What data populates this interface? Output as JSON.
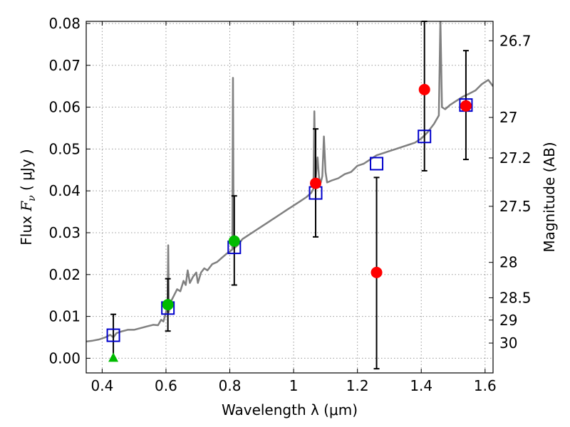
{
  "chart_data": {
    "type": "scatter",
    "xlabel": "Wavelength  λ (μm)",
    "ylabel_prefix": "Flux  ",
    "ylabel_symbol": "F",
    "ylabel_subscript": "ν",
    "ylabel_suffix": "  ( μJy )",
    "y2label": "Magnitude (AB)",
    "xlim": [
      0.35,
      1.625
    ],
    "ylim": [
      -0.0035,
      0.0805
    ],
    "grid": true,
    "x_ticks": [
      {
        "value": 0.4,
        "label": "0.4"
      },
      {
        "value": 0.6,
        "label": "0.6"
      },
      {
        "value": 0.8,
        "label": "0.8"
      },
      {
        "value": 1.0,
        "label": "1"
      },
      {
        "value": 1.2,
        "label": "1.2"
      },
      {
        "value": 1.4,
        "label": "1.4"
      },
      {
        "value": 1.6,
        "label": "1.6"
      }
    ],
    "y_ticks": [
      {
        "value": 0.0,
        "label": "0.00"
      },
      {
        "value": 0.01,
        "label": "0.01"
      },
      {
        "value": 0.02,
        "label": "0.02"
      },
      {
        "value": 0.03,
        "label": "0.03"
      },
      {
        "value": 0.04,
        "label": "0.04"
      },
      {
        "value": 0.05,
        "label": "0.05"
      },
      {
        "value": 0.06,
        "label": "0.06"
      },
      {
        "value": 0.07,
        "label": "0.07"
      },
      {
        "value": 0.08,
        "label": "0.08"
      }
    ],
    "mag_ticks": [
      {
        "mag": 26.7,
        "label": "26.7"
      },
      {
        "mag": 27.0,
        "label": "27"
      },
      {
        "mag": 27.2,
        "label": "27.2"
      },
      {
        "mag": 27.5,
        "label": "27.5"
      },
      {
        "mag": 28.0,
        "label": "28"
      },
      {
        "mag": 28.5,
        "label": "28.5"
      },
      {
        "mag": 29.0,
        "label": "29"
      },
      {
        "mag": 30.0,
        "label": "30"
      }
    ],
    "colors": {
      "model": "#808080",
      "model_box": "#0000cc",
      "detection_red": "#ff0000",
      "detection_green": "#00bb00",
      "errorbar": "#000000",
      "grid": "#999999"
    },
    "model_spectrum": [
      [
        0.35,
        0.004
      ],
      [
        0.37,
        0.0042
      ],
      [
        0.39,
        0.0045
      ],
      [
        0.41,
        0.005
      ],
      [
        0.425,
        0.0056
      ],
      [
        0.435,
        0.005
      ],
      [
        0.445,
        0.006
      ],
      [
        0.46,
        0.0064
      ],
      [
        0.48,
        0.0068
      ],
      [
        0.5,
        0.0068
      ],
      [
        0.52,
        0.0072
      ],
      [
        0.54,
        0.0076
      ],
      [
        0.56,
        0.008
      ],
      [
        0.575,
        0.0079
      ],
      [
        0.585,
        0.0092
      ],
      [
        0.592,
        0.0088
      ],
      [
        0.6,
        0.011
      ],
      [
        0.605,
        0.0125
      ],
      [
        0.607,
        0.027
      ],
      [
        0.609,
        0.011
      ],
      [
        0.615,
        0.0135
      ],
      [
        0.625,
        0.015
      ],
      [
        0.635,
        0.0165
      ],
      [
        0.645,
        0.016
      ],
      [
        0.655,
        0.0185
      ],
      [
        0.662,
        0.0175
      ],
      [
        0.668,
        0.021
      ],
      [
        0.675,
        0.018
      ],
      [
        0.685,
        0.0195
      ],
      [
        0.695,
        0.0205
      ],
      [
        0.7,
        0.018
      ],
      [
        0.71,
        0.0205
      ],
      [
        0.72,
        0.0215
      ],
      [
        0.73,
        0.021
      ],
      [
        0.745,
        0.0225
      ],
      [
        0.76,
        0.023
      ],
      [
        0.775,
        0.024
      ],
      [
        0.79,
        0.025
      ],
      [
        0.8,
        0.0255
      ],
      [
        0.808,
        0.026
      ],
      [
        0.81,
        0.067
      ],
      [
        0.812,
        0.0262
      ],
      [
        0.825,
        0.027
      ],
      [
        0.84,
        0.0285
      ],
      [
        0.86,
        0.0295
      ],
      [
        0.88,
        0.0305
      ],
      [
        0.9,
        0.0315
      ],
      [
        0.92,
        0.0325
      ],
      [
        0.94,
        0.0335
      ],
      [
        0.96,
        0.0345
      ],
      [
        0.98,
        0.0355
      ],
      [
        1.0,
        0.0365
      ],
      [
        1.02,
        0.0375
      ],
      [
        1.04,
        0.0385
      ],
      [
        1.055,
        0.0395
      ],
      [
        1.062,
        0.0405
      ],
      [
        1.065,
        0.059
      ],
      [
        1.068,
        0.042
      ],
      [
        1.075,
        0.048
      ],
      [
        1.08,
        0.043
      ],
      [
        1.085,
        0.042
      ],
      [
        1.09,
        0.0435
      ],
      [
        1.095,
        0.053
      ],
      [
        1.1,
        0.0445
      ],
      [
        1.105,
        0.042
      ],
      [
        1.12,
        0.0425
      ],
      [
        1.14,
        0.043
      ],
      [
        1.16,
        0.044
      ],
      [
        1.18,
        0.0445
      ],
      [
        1.2,
        0.046
      ],
      [
        1.22,
        0.0465
      ],
      [
        1.24,
        0.0475
      ],
      [
        1.26,
        0.0485
      ],
      [
        1.28,
        0.049
      ],
      [
        1.3,
        0.0495
      ],
      [
        1.32,
        0.05
      ],
      [
        1.34,
        0.0505
      ],
      [
        1.36,
        0.051
      ],
      [
        1.38,
        0.0515
      ],
      [
        1.4,
        0.0525
      ],
      [
        1.42,
        0.054
      ],
      [
        1.44,
        0.056
      ],
      [
        1.455,
        0.058
      ],
      [
        1.46,
        0.081
      ],
      [
        1.465,
        0.06
      ],
      [
        1.475,
        0.0595
      ],
      [
        1.49,
        0.0605
      ],
      [
        1.51,
        0.0615
      ],
      [
        1.53,
        0.0625
      ],
      [
        1.55,
        0.0632
      ],
      [
        1.57,
        0.064
      ],
      [
        1.59,
        0.0655
      ],
      [
        1.61,
        0.0665
      ],
      [
        1.625,
        0.065
      ]
    ],
    "model_photometry": [
      {
        "x": 0.435,
        "y": 0.0055
      },
      {
        "x": 0.606,
        "y": 0.012
      },
      {
        "x": 0.814,
        "y": 0.0265
      },
      {
        "x": 1.069,
        "y": 0.0395
      },
      {
        "x": 1.26,
        "y": 0.0465
      },
      {
        "x": 1.41,
        "y": 0.053
      },
      {
        "x": 1.54,
        "y": 0.0605
      }
    ],
    "observations": [
      {
        "x": 0.435,
        "y": 0.0,
        "err_lo": 0.0,
        "err_hi": 0.0105,
        "marker": "triangle",
        "color": "green"
      },
      {
        "x": 0.606,
        "y": 0.0128,
        "err_lo": 0.0065,
        "err_hi": 0.019,
        "marker": "circle",
        "color": "green"
      },
      {
        "x": 0.814,
        "y": 0.028,
        "err_lo": 0.0175,
        "err_hi": 0.0388,
        "marker": "circle",
        "color": "green"
      },
      {
        "x": 1.069,
        "y": 0.0418,
        "err_lo": 0.029,
        "err_hi": 0.0548,
        "marker": "circle",
        "color": "red"
      },
      {
        "x": 1.26,
        "y": 0.0205,
        "err_lo": -0.0025,
        "err_hi": 0.0432,
        "marker": "circle",
        "color": "red"
      },
      {
        "x": 1.41,
        "y": 0.0642,
        "err_lo": 0.0448,
        "err_hi": 0.0805,
        "marker": "circle",
        "color": "red"
      },
      {
        "x": 1.54,
        "y": 0.0603,
        "err_lo": 0.0475,
        "err_hi": 0.0735,
        "marker": "circle",
        "color": "red"
      }
    ]
  }
}
